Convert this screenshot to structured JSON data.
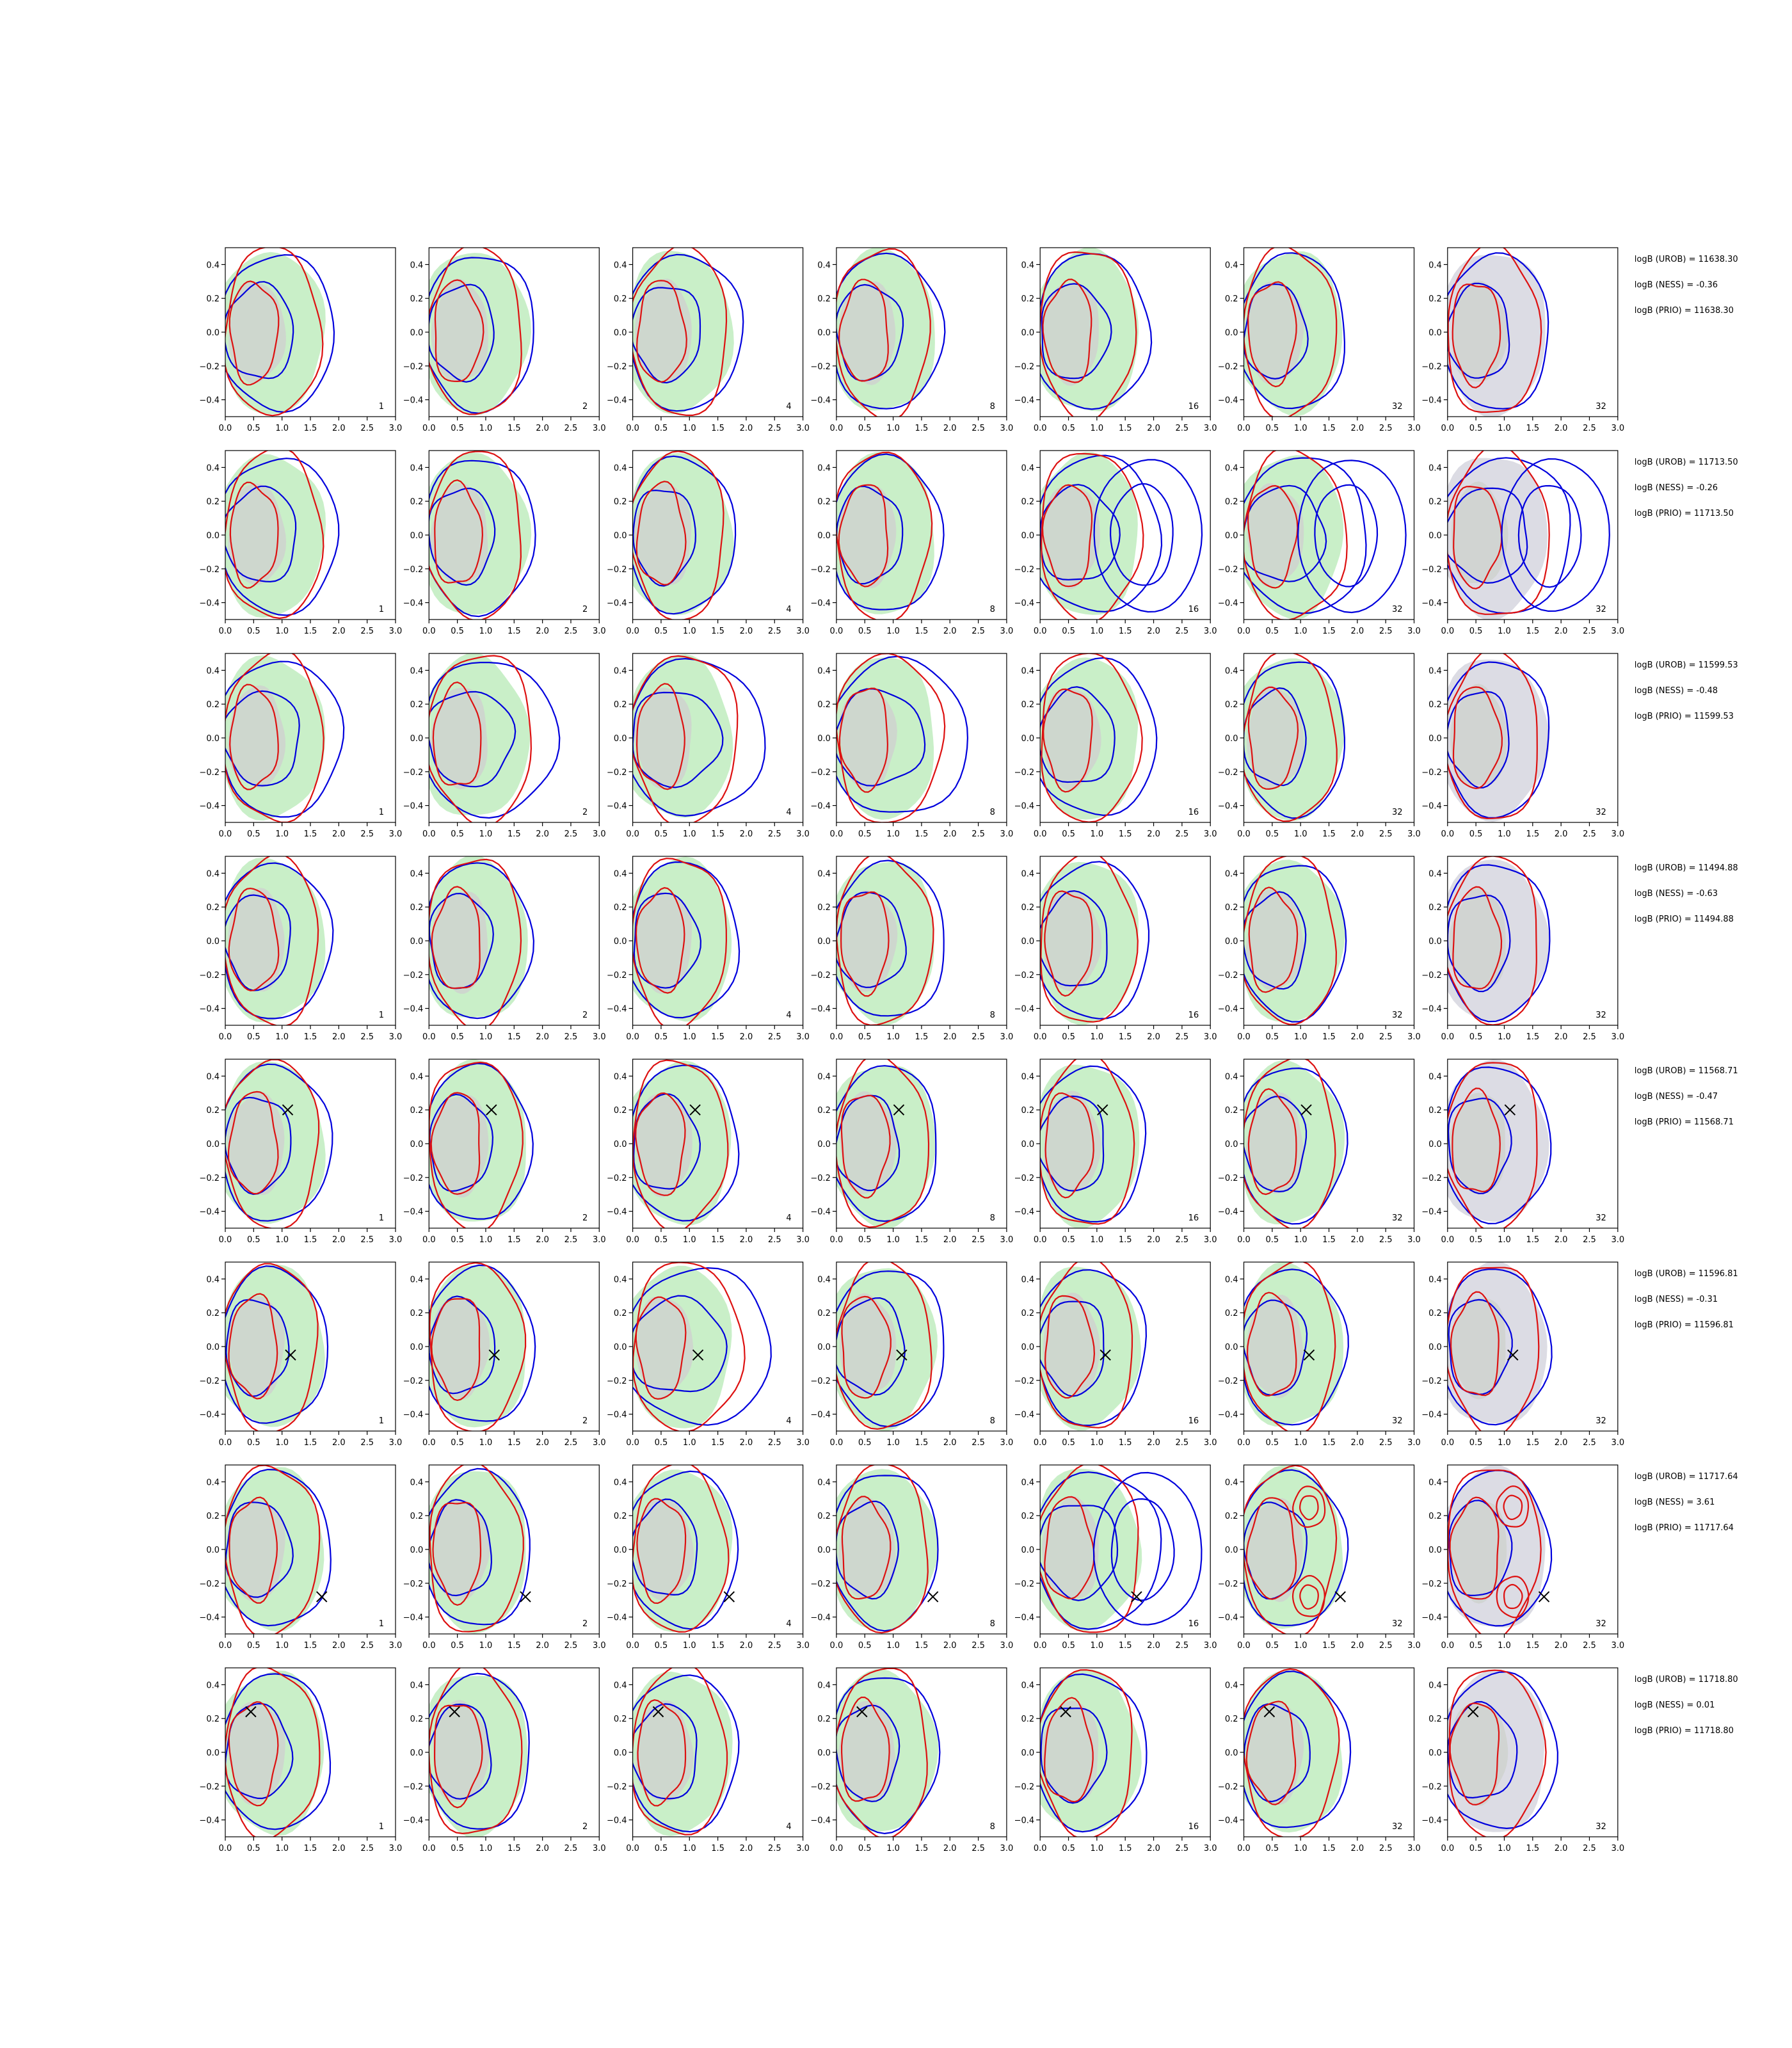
{
  "chart_data": {
    "type": "contour",
    "grid_rows": 8,
    "grid_cols": 7,
    "xlim": [
      0.0,
      3.0
    ],
    "ylim": [
      -0.5,
      0.5
    ],
    "xticks": [
      "0.0",
      "0.5",
      "1.0",
      "1.5",
      "2.0",
      "2.5",
      "3.0"
    ],
    "yticks": [
      "0.4",
      "0.2",
      "0.0",
      "−0.2",
      "−0.4"
    ],
    "grid": false,
    "colors": {
      "green_fill": "#c9efc8",
      "gray_fill": "#dcdce4",
      "blue": "#0000dd",
      "red": "#dd1111",
      "marker": "#000000"
    },
    "rows": [
      {
        "panel_labels": [
          "1",
          "2",
          "4",
          "8",
          "16",
          "32",
          "32"
        ],
        "marker": null,
        "shift": [
          0.1,
          0.05,
          0.1,
          0.05,
          0.1,
          0.0,
          0.0
        ],
        "extra": [
          null,
          null,
          null,
          null,
          null,
          null,
          null
        ],
        "logB": [
          "logB (UROB) = 11638.30",
          "logB (NESS) = -0.36",
          "logB (PRIO) = 11638.30"
        ]
      },
      {
        "panel_labels": [
          "1",
          "2",
          "4",
          "8",
          "16",
          "32",
          "32"
        ],
        "marker": null,
        "shift": [
          0.15,
          0.05,
          0.0,
          0.05,
          0.25,
          0.3,
          0.3
        ],
        "extra": [
          null,
          null,
          null,
          null,
          "ring",
          "ring",
          "ring"
        ],
        "logB": [
          "logB (UROB) = 11713.50",
          "logB (NESS) = -0.26",
          "logB (PRIO) = 11713.50"
        ]
      },
      {
        "panel_labels": [
          "1",
          "2",
          "4",
          "8",
          "16",
          "32",
          "32"
        ],
        "marker": null,
        "shift": [
          0.2,
          0.35,
          0.4,
          0.4,
          0.2,
          0.0,
          0.0
        ],
        "extra": [
          null,
          null,
          null,
          null,
          null,
          null,
          null
        ],
        "logB": [
          "logB (UROB) = 11599.53",
          "logB (NESS) = -0.48",
          "logB (PRIO) = 11599.53"
        ]
      },
      {
        "panel_labels": [
          "1",
          "2",
          "4",
          "8",
          "16",
          "32",
          "32"
        ],
        "marker": null,
        "shift": [
          0.05,
          0.0,
          0.05,
          0.1,
          0.1,
          0.0,
          0.0
        ],
        "extra": [
          null,
          null,
          null,
          null,
          null,
          null,
          null
        ],
        "logB": [
          "logB (UROB) = 11494.88",
          "logB (NESS) = -0.63",
          "logB (PRIO) = 11494.88"
        ]
      },
      {
        "panel_labels": [
          "1",
          "2",
          "4",
          "8",
          "16",
          "32",
          "32"
        ],
        "marker": [
          1.1,
          0.2
        ],
        "shift": [
          0.05,
          0.0,
          0.05,
          0.0,
          0.05,
          0.0,
          0.0
        ],
        "extra": [
          null,
          null,
          null,
          null,
          null,
          null,
          null
        ],
        "logB": [
          "logB (UROB) = 11568.71",
          "logB (NESS) = -0.47",
          "logB (PRIO) = 11568.71"
        ]
      },
      {
        "panel_labels": [
          "1",
          "2",
          "4",
          "8",
          "16",
          "32",
          "32"
        ],
        "marker": [
          1.15,
          -0.05
        ],
        "shift": [
          0.0,
          0.05,
          0.5,
          0.1,
          0.05,
          0.0,
          0.0
        ],
        "extra": [
          null,
          null,
          null,
          null,
          null,
          null,
          null
        ],
        "logB": [
          "logB (UROB) = 11596.81",
          "logB (NESS) = -0.31",
          "logB (PRIO) = 11596.81"
        ]
      },
      {
        "panel_labels": [
          "1",
          "2",
          "4",
          "8",
          "16",
          "32",
          "32"
        ],
        "marker": [
          1.7,
          -0.28
        ],
        "shift": [
          0.05,
          0.0,
          0.05,
          0.0,
          0.25,
          0.0,
          0.0
        ],
        "extra": [
          null,
          null,
          null,
          null,
          "ring",
          "blobs",
          "blobs"
        ],
        "logB": [
          "logB (UROB) = 11717.64",
          "logB (NESS) = 3.61",
          "logB (PRIO) = 11717.64"
        ]
      },
      {
        "panel_labels": [
          "1",
          "2",
          "4",
          "8",
          "16",
          "32",
          "32"
        ],
        "marker": [
          0.45,
          0.24
        ],
        "shift": [
          0.05,
          0.0,
          0.05,
          0.0,
          0.05,
          0.05,
          0.1
        ],
        "extra": [
          null,
          null,
          null,
          null,
          null,
          null,
          null
        ],
        "logB": [
          "logB (UROB) = 11718.80",
          "logB (NESS) = 0.01",
          "logB (PRIO) = 11718.80"
        ]
      }
    ]
  }
}
